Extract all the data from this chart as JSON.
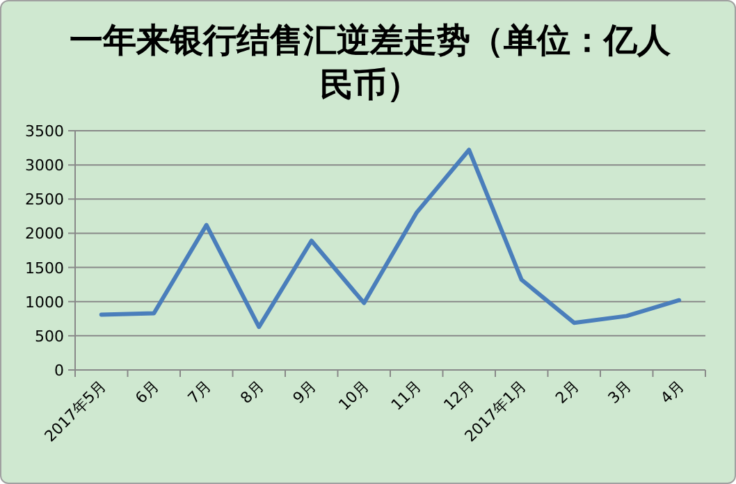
{
  "chart_data": {
    "type": "line",
    "title": "一年来银行结售汇逆差走势（单位：亿人民币）",
    "categories": [
      "2017年5月",
      "6月",
      "7月",
      "8月",
      "9月",
      "10月",
      "11月",
      "12月",
      "2017年1月",
      "2月",
      "3月",
      "4月"
    ],
    "series": [
      {
        "color": "#4a7ebb",
        "values": [
          810,
          830,
          2120,
          630,
          1890,
          980,
          2300,
          3220,
          1320,
          690,
          790,
          1020
        ]
      }
    ],
    "ylim": [
      0,
      3500
    ],
    "yticks": [
      0,
      500,
      1000,
      1500,
      2000,
      2500,
      3000,
      3500
    ],
    "grid": "y",
    "marker": "none",
    "line_style": "solid"
  }
}
